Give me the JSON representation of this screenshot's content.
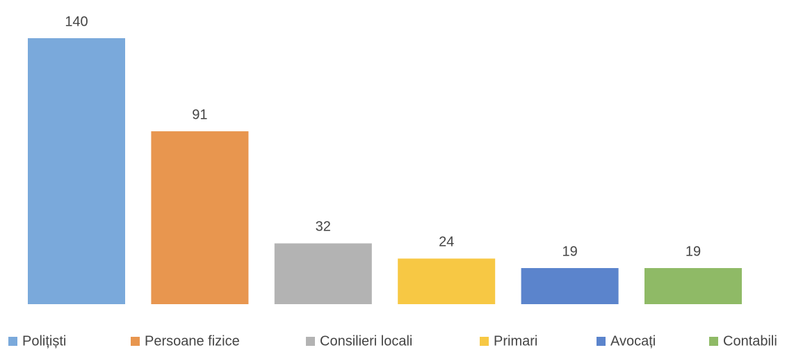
{
  "chart_data": {
    "type": "bar",
    "categories": [
      "Polițiști",
      "Persoane fizice",
      "Consilieri locali",
      "Primari",
      "Avocați",
      "Contabili"
    ],
    "values": [
      140,
      91,
      32,
      24,
      19,
      19
    ],
    "colors": [
      "#7aa9db",
      "#e8964f",
      "#b3b3b3",
      "#f7c844",
      "#5b84cc",
      "#8fba66"
    ],
    "legend": "bottom"
  }
}
